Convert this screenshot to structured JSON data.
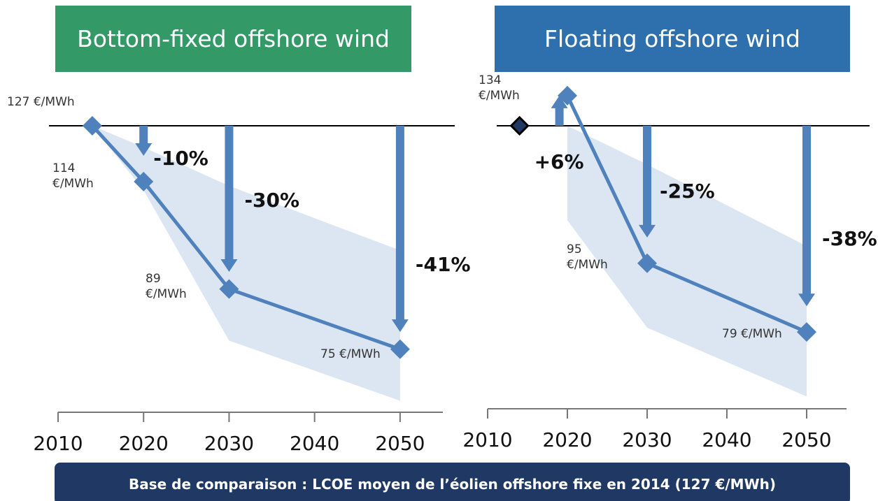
{
  "chart_data": [
    {
      "type": "line",
      "title": "Bottom-fixed offshore wind",
      "x": [
        2014,
        2020,
        2030,
        2050
      ],
      "values": [
        127,
        114,
        89,
        75
      ],
      "value_labels": [
        "127 €/MWh",
        "114 €/MWh",
        "89 €/MWh",
        "75 €/MWh"
      ],
      "color": "#4f81bd",
      "title_color": "#339966",
      "xlim": [
        2010,
        2055
      ],
      "xticks": [
        2010,
        2020,
        2030,
        2040,
        2050
      ],
      "ylim": [
        60,
        140
      ],
      "baseline": 127,
      "range": {
        "x": [
          2014,
          2020,
          2030,
          2050
        ],
        "low": [
          127,
          112,
          77,
          63
        ],
        "high": [
          127,
          122,
          113,
          98
        ],
        "color": "#dce6f2"
      },
      "annotations": [
        {
          "x": 2020,
          "to": 120,
          "label": "-10%"
        },
        {
          "x": 2030,
          "to": 93,
          "label": "-30%"
        },
        {
          "x": 2050,
          "to": 79,
          "label": "-41%"
        }
      ]
    },
    {
      "type": "line",
      "title": "Floating offshore wind",
      "x": [
        2020,
        2030,
        2050
      ],
      "values": [
        134,
        95,
        79
      ],
      "value_labels": [
        "134 €/MWh",
        "95 €/MWh",
        "79 €/MWh"
      ],
      "color": "#4f81bd",
      "title_color": "#2e6fae",
      "xlim": [
        2010,
        2055
      ],
      "xticks": [
        2010,
        2020,
        2030,
        2040,
        2050
      ],
      "ylim": [
        60,
        140
      ],
      "baseline": 127,
      "reference": {
        "x": 2014,
        "value": 127
      },
      "range": {
        "x": [
          2020,
          2030,
          2050
        ],
        "low": [
          105,
          80,
          64
        ],
        "high": [
          127,
          118,
          99
        ],
        "color": "#dce6f2"
      },
      "annotations": [
        {
          "x": 2019,
          "to": 134,
          "label": "+6%"
        },
        {
          "x": 2030,
          "to": 101,
          "label": "-25%"
        },
        {
          "x": 2050,
          "to": 85,
          "label": "-38%"
        }
      ]
    }
  ],
  "footer": "Base de comparaison : LCOE moyen de l’éolien offshore fixe en 2014 (127 €/MWh)"
}
